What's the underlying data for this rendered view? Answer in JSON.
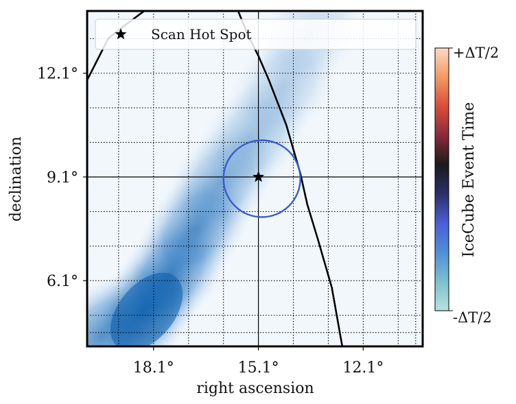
{
  "chart_data": {
    "type": "heatmap",
    "title": "",
    "xlabel": "right ascension",
    "ylabel": "declination",
    "x_direction": "decreasing-left-to-right",
    "xlim": [
      20.0,
      10.4
    ],
    "ylim": [
      4.2,
      13.9
    ],
    "x_ticks": [
      {
        "value": 18.1,
        "label": "18.1°"
      },
      {
        "value": 15.1,
        "label": "15.1°"
      },
      {
        "value": 12.1,
        "label": "12.1°"
      }
    ],
    "y_ticks": [
      {
        "value": 12.1,
        "label": "12.1°"
      },
      {
        "value": 9.1,
        "label": "9.1°"
      },
      {
        "value": 6.1,
        "label": "6.1°"
      }
    ],
    "grid": "dotted",
    "grid_x": [
      19.1,
      18.1,
      17.1,
      16.1,
      14.1,
      13.1,
      12.1,
      11.1,
      10.6
    ],
    "grid_y": [
      4.6,
      5.1,
      6.1,
      7.1,
      8.1,
      10.1,
      11.1,
      12.1,
      13.1
    ],
    "crosshair": {
      "ra": 15.1,
      "dec": 9.1
    },
    "hot_spot": {
      "ra": 15.1,
      "dec": 9.1,
      "marker": "star",
      "color": "#000000"
    },
    "error_circle": {
      "ra": 15.0,
      "dec": 9.05,
      "radius": 1.1,
      "color": "#3a5bd0"
    },
    "density_peak": {
      "ra": 18.3,
      "dec": 5.2,
      "color": "#0b5cab"
    },
    "density_ridge": [
      {
        "ra": 19.6,
        "dec": 4.5,
        "level": 0.75
      },
      {
        "ra": 18.4,
        "dec": 5.2,
        "level": 1.0
      },
      {
        "ra": 17.6,
        "dec": 6.3,
        "level": 0.85
      },
      {
        "ra": 16.9,
        "dec": 7.6,
        "level": 0.72
      },
      {
        "ra": 16.2,
        "dec": 8.9,
        "level": 0.5
      },
      {
        "ra": 15.3,
        "dec": 10.2,
        "level": 0.38
      },
      {
        "ra": 14.4,
        "dec": 11.7,
        "level": 0.3
      },
      {
        "ra": 13.6,
        "dec": 13.3,
        "level": 0.22
      }
    ],
    "contours": [
      {
        "name": "",
        "points": [
          [
            20.0,
            11.9
          ],
          [
            19.7,
            12.5
          ],
          [
            19.4,
            13.1
          ],
          [
            18.9,
            13.5
          ],
          [
            18.5,
            13.8
          ],
          [
            18.3,
            13.95
          ]
        ]
      },
      {
        "name": "",
        "points": [
          [
            12.7,
            4.2
          ],
          [
            13.0,
            5.9
          ],
          [
            13.4,
            7.3
          ],
          [
            13.7,
            8.3
          ],
          [
            13.9,
            9.2
          ],
          [
            14.3,
            10.6
          ],
          [
            14.8,
            11.9
          ],
          [
            15.1,
            12.6
          ],
          [
            15.4,
            13.2
          ],
          [
            15.7,
            13.95
          ]
        ]
      }
    ],
    "legend": {
      "position": "top",
      "entries": [
        {
          "label": "Scan Hot Spot",
          "marker": "star"
        }
      ]
    },
    "colorbar": {
      "label": "IceCube Event Time",
      "top_label": "+ΔT/2",
      "bottom_label": "-ΔT/2",
      "stops": [
        "#fcd9c4",
        "#f39a63",
        "#d94d3b",
        "#8a2a3a",
        "#1a1a1a",
        "#2c2f6b",
        "#4a5fd8",
        "#4f8fd8",
        "#7cc0d0",
        "#b8e2dc"
      ]
    }
  }
}
